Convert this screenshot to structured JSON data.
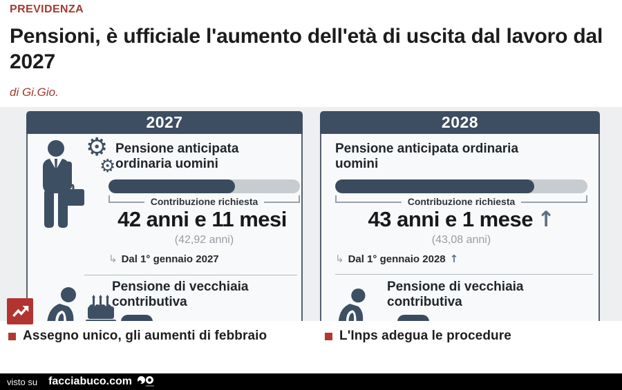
{
  "article": {
    "kicker": "PREVIDENZA",
    "headline": "Pensioni, è ufficiale l'aumento dell'età di uscita dal lavoro dal 2027",
    "byline": "di Gi.Gio."
  },
  "icons": {
    "gear": "⚙",
    "return_arrow": "↳",
    "up_arrow": "↑"
  },
  "infographic": {
    "panels": [
      {
        "year": "2027",
        "section1_title": "Pensione anticipata ordinaria uomini",
        "bracket_label": "Contribuzione richiesta",
        "main_value": "42 anni e 11 mesi",
        "value_arrow": "",
        "sub_value": "(42,92 anni)",
        "effective_from": "Dal 1° gennaio 2027",
        "from_arrow": "",
        "progress_pct": 66,
        "section2_title": "Pensione di vecchiaia contributiva"
      },
      {
        "year": "2028",
        "section1_title": "Pensione anticipata ordinaria uomini",
        "bracket_label": "Contribuzione richiesta",
        "main_value": "43 anni e 1 mese",
        "value_arrow": "↑",
        "sub_value": "(43,08 anni)",
        "effective_from": "Dal 1° gennaio 2028",
        "from_arrow": "↑",
        "progress_pct": 79,
        "section2_title": "Pensione di vecchiaia contributiva"
      }
    ],
    "colors": {
      "slate": "#3d4e62",
      "bar_fill": "#3a4b5f",
      "bar_track": "#c7ccd1",
      "badge_red": "#b23430",
      "accent_red": "#a23a31"
    }
  },
  "related_links": [
    {
      "label": "Assegno unico, gli aumenti di febbraio"
    },
    {
      "label": "L'Inps adegua le procedure"
    }
  ],
  "footer": {
    "prefix": "visto su",
    "brand": "facciabuco.com"
  }
}
